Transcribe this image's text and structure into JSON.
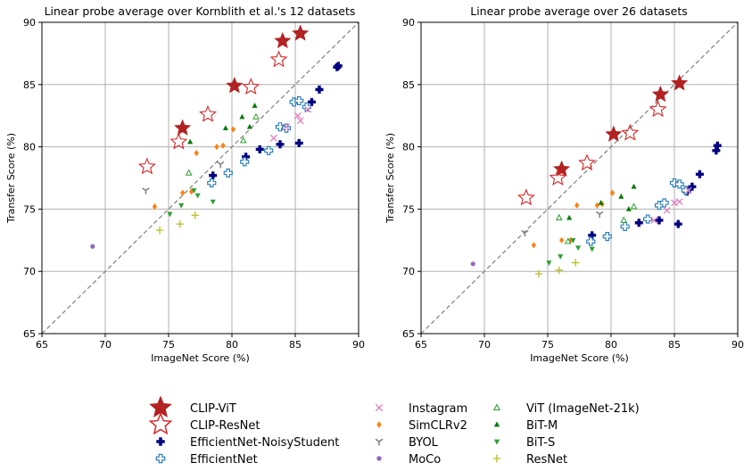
{
  "chart_data": [
    {
      "type": "scatter",
      "title": "Linear probe average over Kornblith et al.'s 12 datasets",
      "xlabel": "ImageNet Score (%)",
      "ylabel": "Transfer Score (%)",
      "xlim": [
        65,
        90
      ],
      "ylim": [
        65,
        90
      ],
      "xticks": [
        "65",
        "70",
        "75",
        "80",
        "85",
        "90"
      ],
      "yticks": [
        "65",
        "70",
        "75",
        "80",
        "85",
        "90"
      ],
      "grid": true,
      "diagonal_reference_line": true,
      "series": [
        {
          "name": "CLIP-ViT",
          "points": [
            [
              76.1,
              81.5
            ],
            [
              80.2,
              84.9
            ],
            [
              84.0,
              88.5
            ],
            [
              85.4,
              89.1
            ]
          ]
        },
        {
          "name": "CLIP-ResNet",
          "points": [
            [
              73.3,
              78.4
            ],
            [
              75.8,
              80.4
            ],
            [
              78.1,
              82.6
            ],
            [
              81.5,
              84.8
            ],
            [
              83.7,
              87.0
            ]
          ]
        },
        {
          "name": "EfficientNet-NoisyStudent",
          "points": [
            [
              78.5,
              77.7
            ],
            [
              81.1,
              79.2
            ],
            [
              82.2,
              79.8
            ],
            [
              83.8,
              80.2
            ],
            [
              85.3,
              80.3
            ],
            [
              86.3,
              83.6
            ],
            [
              86.9,
              84.6
            ],
            [
              88.3,
              86.4
            ],
            [
              88.4,
              86.5
            ]
          ]
        },
        {
          "name": "EfficientNet",
          "points": [
            [
              78.4,
              77.1
            ],
            [
              79.7,
              77.9
            ],
            [
              81.0,
              78.8
            ],
            [
              82.9,
              79.7
            ],
            [
              83.8,
              81.6
            ],
            [
              84.3,
              81.5
            ],
            [
              84.9,
              83.6
            ],
            [
              85.3,
              83.7
            ],
            [
              85.9,
              83.2
            ]
          ]
        },
        {
          "name": "Instagram",
          "points": [
            [
              83.3,
              80.7
            ],
            [
              84.3,
              81.6
            ],
            [
              85.2,
              82.5
            ],
            [
              85.4,
              82.1
            ],
            [
              86.0,
              83.0
            ]
          ]
        },
        {
          "name": "SimCLRv2",
          "points": [
            [
              73.9,
              75.2
            ],
            [
              76.1,
              76.3
            ],
            [
              76.8,
              76.4
            ],
            [
              77.2,
              79.5
            ],
            [
              78.8,
              80.0
            ],
            [
              79.3,
              80.1
            ],
            [
              80.1,
              81.4
            ]
          ]
        },
        {
          "name": "BYOL",
          "points": [
            [
              73.2,
              76.5
            ],
            [
              79.1,
              78.6
            ]
          ]
        },
        {
          "name": "MoCo",
          "points": [
            [
              69.0,
              72.0
            ]
          ]
        },
        {
          "name": "ViT (ImageNet-21k)",
          "points": [
            [
              76.6,
              77.9
            ],
            [
              80.9,
              80.5
            ],
            [
              81.9,
              82.4
            ]
          ]
        },
        {
          "name": "BiT-M",
          "points": [
            [
              76.7,
              80.4
            ],
            [
              79.5,
              81.5
            ],
            [
              80.8,
              82.4
            ],
            [
              81.4,
              81.6
            ],
            [
              81.8,
              83.3
            ]
          ]
        },
        {
          "name": "BiT-S",
          "points": [
            [
              75.1,
              74.6
            ],
            [
              76.0,
              75.3
            ],
            [
              77.0,
              76.5
            ],
            [
              77.3,
              76.1
            ],
            [
              78.5,
              75.6
            ]
          ]
        },
        {
          "name": "ResNet",
          "points": [
            [
              74.3,
              73.3
            ],
            [
              75.9,
              73.8
            ],
            [
              77.1,
              74.5
            ]
          ]
        }
      ]
    },
    {
      "type": "scatter",
      "title": "Linear probe average over 26 datasets",
      "xlabel": "ImageNet Score (%)",
      "ylabel": "Transfer Score (%)",
      "xlim": [
        65,
        90
      ],
      "ylim": [
        65,
        90
      ],
      "xticks": [
        "65",
        "70",
        "75",
        "80",
        "85",
        "90"
      ],
      "yticks": [
        "65",
        "70",
        "75",
        "80",
        "85",
        "90"
      ],
      "grid": true,
      "diagonal_reference_line": true,
      "series": [
        {
          "name": "CLIP-ViT",
          "points": [
            [
              76.1,
              78.2
            ],
            [
              80.2,
              81.0
            ],
            [
              83.9,
              84.2
            ],
            [
              85.4,
              85.1
            ]
          ]
        },
        {
          "name": "CLIP-ResNet",
          "points": [
            [
              73.3,
              75.9
            ],
            [
              75.8,
              77.5
            ],
            [
              78.1,
              78.7
            ],
            [
              81.5,
              81.1
            ],
            [
              83.7,
              83.0
            ]
          ]
        },
        {
          "name": "EfficientNet-NoisyStudent",
          "points": [
            [
              78.5,
              72.9
            ],
            [
              82.2,
              73.9
            ],
            [
              83.8,
              74.1
            ],
            [
              85.3,
              73.8
            ],
            [
              86.0,
              76.4
            ],
            [
              86.4,
              76.8
            ],
            [
              87.0,
              77.8
            ],
            [
              88.3,
              79.7
            ],
            [
              88.4,
              80.1
            ]
          ]
        },
        {
          "name": "EfficientNet",
          "points": [
            [
              78.4,
              72.4
            ],
            [
              79.7,
              72.8
            ],
            [
              81.1,
              73.6
            ],
            [
              82.9,
              74.2
            ],
            [
              83.8,
              75.3
            ],
            [
              84.2,
              75.5
            ],
            [
              85.0,
              77.1
            ],
            [
              85.4,
              77.0
            ],
            [
              85.9,
              76.5
            ]
          ]
        },
        {
          "name": "Instagram",
          "points": [
            [
              83.4,
              74.1
            ],
            [
              84.4,
              74.9
            ],
            [
              85.0,
              75.5
            ],
            [
              85.4,
              75.6
            ],
            [
              86.1,
              76.5
            ]
          ]
        },
        {
          "name": "SimCLRv2",
          "points": [
            [
              73.9,
              72.1
            ],
            [
              76.1,
              72.5
            ],
            [
              76.8,
              72.5
            ],
            [
              77.3,
              75.3
            ],
            [
              78.9,
              75.3
            ],
            [
              79.3,
              75.4
            ],
            [
              80.1,
              76.3
            ]
          ]
        },
        {
          "name": "BYOL",
          "points": [
            [
              73.2,
              73.1
            ],
            [
              79.1,
              74.6
            ]
          ]
        },
        {
          "name": "MoCo",
          "points": [
            [
              69.1,
              70.6
            ]
          ]
        },
        {
          "name": "ViT (ImageNet-21k)",
          "points": [
            [
              75.9,
              74.3
            ],
            [
              76.6,
              72.4
            ],
            [
              81.0,
              74.1
            ],
            [
              81.8,
              75.2
            ]
          ]
        },
        {
          "name": "BiT-M",
          "points": [
            [
              76.7,
              74.3
            ],
            [
              79.2,
              75.5
            ],
            [
              80.8,
              76.0
            ],
            [
              81.4,
              75.0
            ],
            [
              81.8,
              76.8
            ]
          ]
        },
        {
          "name": "BiT-S",
          "points": [
            [
              75.1,
              70.7
            ],
            [
              76.0,
              71.2
            ],
            [
              77.0,
              72.5
            ],
            [
              77.4,
              71.9
            ],
            [
              78.5,
              71.8
            ]
          ]
        },
        {
          "name": "ResNet",
          "points": [
            [
              74.3,
              69.8
            ],
            [
              75.9,
              70.1
            ],
            [
              77.2,
              70.7
            ]
          ]
        }
      ]
    }
  ],
  "legend": {
    "placement": "bottom-center",
    "columns": [
      [
        "CLIP-ViT",
        "CLIP-ResNet",
        "EfficientNet-NoisyStudent",
        "EfficientNet"
      ],
      [
        "Instagram",
        "SimCLRv2",
        "BYOL",
        "MoCo"
      ],
      [
        "ViT (ImageNet-21k)",
        "BiT-M",
        "BiT-S",
        "ResNet"
      ]
    ]
  },
  "colors": {
    "CLIP-ViT": "#b22222",
    "CLIP-ResNet": "#d62728",
    "EfficientNet-NoisyStudent": "#000080",
    "EfficientNet": "#1f77b4",
    "Instagram": "#e377c2",
    "SimCLRv2": "#ff7f0e",
    "BYOL": "#7f7f7f",
    "MoCo": "#9467bd",
    "ViT (ImageNet-21k)": "#2ca02c",
    "BiT-M": "#007a00",
    "BiT-S": "#2ca02c",
    "ResNet": "#bcbd22",
    "grid": "#b0b0b0",
    "diagonal": "#808080"
  },
  "markers": {
    "CLIP-ViT": "filled-star",
    "CLIP-ResNet": "hollow-star",
    "EfficientNet-NoisyStudent": "filled-plus",
    "EfficientNet": "hollow-plus",
    "Instagram": "x",
    "SimCLRv2": "diamond",
    "BYOL": "tri-down",
    "MoCo": "dot",
    "ViT (ImageNet-21k)": "hollow-triangle",
    "BiT-M": "triangle-up",
    "BiT-S": "triangle-down",
    "ResNet": "thin-plus"
  }
}
